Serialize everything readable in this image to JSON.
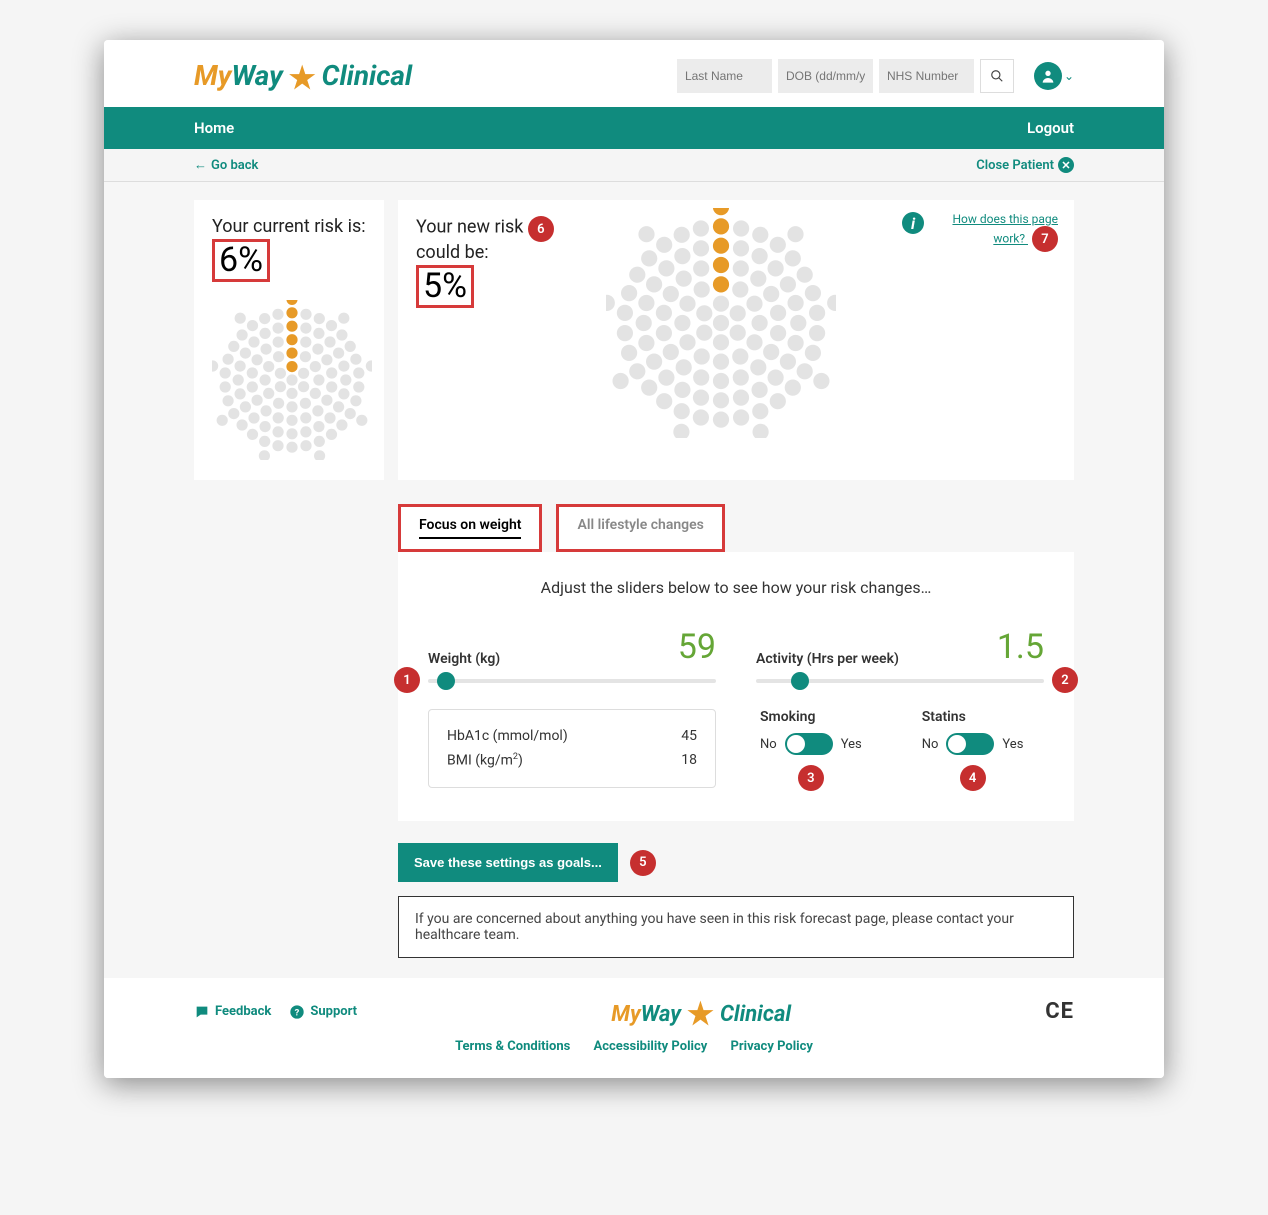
{
  "brand": {
    "my": "My",
    "way": "Way",
    "clinical": "Clinical"
  },
  "search": {
    "lastname_placeholder": "Last Name",
    "dob_placeholder": "DOB (dd/mm/y",
    "nhs_placeholder": "NHS Number"
  },
  "nav": {
    "home": "Home",
    "logout": "Logout"
  },
  "subnav": {
    "goback": "Go back",
    "close": "Close Patient"
  },
  "risk": {
    "current_title": "Your current risk is:",
    "current_value": "6%",
    "current_highlighted": 6,
    "new_title_a": "Your new risk",
    "new_title_b": "could be:",
    "new_value": "5%",
    "new_highlighted": 5,
    "howlink": "How does this page work?",
    "dot_total": 100,
    "dot_color_on": "#e79a27",
    "dot_color_off": "#e3e3e3"
  },
  "tabs": {
    "focus": "Focus on weight",
    "all": "All lifestyle changes"
  },
  "sliders": {
    "instruction": "Adjust the sliders below to see how your risk changes…",
    "weight_label": "Weight (kg)",
    "weight_value": "59",
    "weight_pos_pct": 3,
    "activity_label": "Activity (Hrs per week)",
    "activity_value": "1.5",
    "activity_pos_pct": 12,
    "value_color": "#65a636"
  },
  "stats": {
    "hba1c_label": "HbA1c (mmol/mol)",
    "hba1c_value": "45",
    "bmi_label_pre": "BMI (kg/m",
    "bmi_label_post": ")",
    "bmi_value": "18"
  },
  "toggles": {
    "smoking_label": "Smoking",
    "statins_label": "Statins",
    "no": "No",
    "yes": "Yes"
  },
  "save_button": "Save these settings as goals...",
  "note": "If you are concerned about anything you have seen in this risk forecast page, please contact your healthcare team.",
  "footer": {
    "feedback": "Feedback",
    "support": "Support",
    "terms": "Terms & Conditions",
    "accessibility": "Accessibility Policy",
    "privacy": "Privacy Policy",
    "ce": "CE"
  },
  "annotations": {
    "a1": "1",
    "a2": "2",
    "a3": "3",
    "a4": "4",
    "a5": "5",
    "a6": "6",
    "a7": "7"
  },
  "colors": {
    "teal": "#108b7e",
    "orange": "#e79a27",
    "green": "#65a636",
    "highlight_border": "#d63a3a",
    "annot_bg": "#c62f2f"
  }
}
